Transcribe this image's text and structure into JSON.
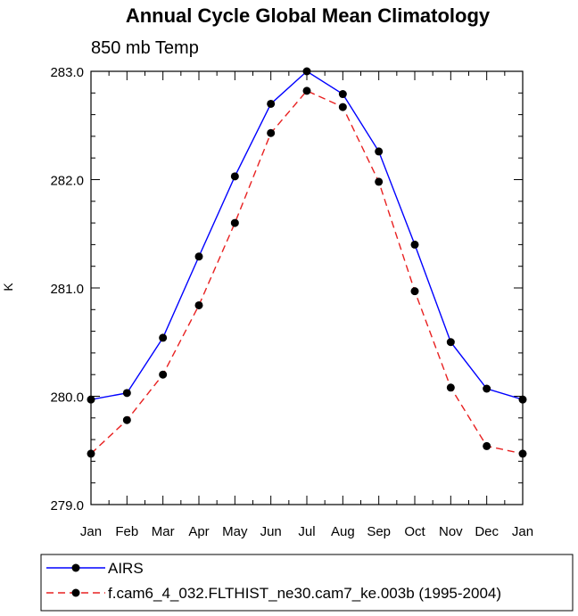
{
  "chart_data": {
    "type": "line",
    "title": "Annual Cycle Global Mean Climatology",
    "subtitle": "850 mb Temp",
    "xlabel": "",
    "ylabel": "K",
    "categories": [
      "Jan",
      "Feb",
      "Mar",
      "Apr",
      "May",
      "Jun",
      "Jul",
      "Aug",
      "Sep",
      "Oct",
      "Nov",
      "Dec",
      "Jan"
    ],
    "ylim": [
      279.0,
      283.0
    ],
    "yticks": [
      "279.0",
      "280.0",
      "281.0",
      "282.0",
      "283.0"
    ],
    "grid": false,
    "legend_position": "bottom",
    "series": [
      {
        "name": "AIRS",
        "color": "#0000ff",
        "style": "solid",
        "marker": "filled-circle",
        "values": [
          279.97,
          280.03,
          280.54,
          281.29,
          282.03,
          282.7,
          283.0,
          282.79,
          282.26,
          281.4,
          280.5,
          280.07,
          279.97
        ]
      },
      {
        "name": "f.cam6_4_032.FLTHIST_ne30.cam7_ke.003b (1995-2004)",
        "color": "#e82020",
        "style": "dashed",
        "marker": "filled-circle",
        "values": [
          279.47,
          279.78,
          280.2,
          280.84,
          281.6,
          282.43,
          282.82,
          282.67,
          281.98,
          280.97,
          280.08,
          279.54,
          279.47
        ]
      }
    ]
  }
}
